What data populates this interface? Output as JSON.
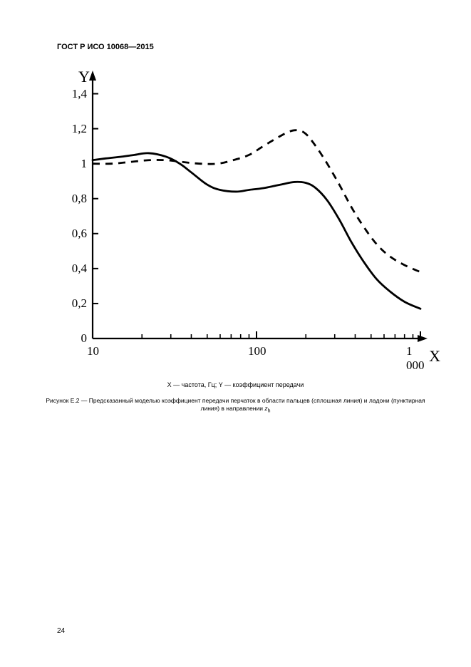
{
  "header": {
    "standard": "ГОСТ Р ИСО 10068—2015"
  },
  "page_number": "24",
  "axis_caption": {
    "line1_a": "X — частота, Гц; Y — коэффициент передачи",
    "fig_label": "Рисунок Е.2 — Предсказанный моделью коэффициент передачи перчаток в области пальцев (сплошная линия) и ладони (пунктирная линия) в направлении ",
    "z_sym": "z",
    "z_sub": "h"
  },
  "chart": {
    "type": "line-log-x",
    "colors": {
      "background": "#ffffff",
      "axis": "#000000",
      "series_solid": "#000000",
      "series_dashed": "#000000"
    },
    "stroke": {
      "axis_width": 2.2,
      "tick_width": 2.0,
      "series_width": 2.8,
      "dash_pattern": "10,8"
    },
    "x": {
      "label": "X",
      "min": 10,
      "max": 1000,
      "ticks_major": [
        10,
        100,
        1000
      ],
      "tick_labels": [
        "10",
        "100",
        "1 000"
      ]
    },
    "y": {
      "label": "Y",
      "min": 0,
      "max": 1.5,
      "ticks": [
        0,
        0.2,
        0.4,
        0.6,
        0.8,
        1.0,
        1.2,
        1.4
      ],
      "tick_labels": [
        "0",
        "0,2",
        "0,4",
        "0,6",
        "0,8",
        "1",
        "1,2",
        "1,4"
      ]
    },
    "series": {
      "solid": {
        "name": "fingers",
        "points": [
          [
            10,
            1.02
          ],
          [
            12,
            1.03
          ],
          [
            15,
            1.04
          ],
          [
            18,
            1.05
          ],
          [
            22,
            1.06
          ],
          [
            28,
            1.04
          ],
          [
            34,
            1.0
          ],
          [
            40,
            0.95
          ],
          [
            50,
            0.88
          ],
          [
            60,
            0.85
          ],
          [
            75,
            0.84
          ],
          [
            90,
            0.85
          ],
          [
            110,
            0.86
          ],
          [
            140,
            0.88
          ],
          [
            170,
            0.895
          ],
          [
            200,
            0.89
          ],
          [
            230,
            0.86
          ],
          [
            270,
            0.79
          ],
          [
            320,
            0.68
          ],
          [
            380,
            0.55
          ],
          [
            450,
            0.44
          ],
          [
            540,
            0.34
          ],
          [
            650,
            0.27
          ],
          [
            800,
            0.21
          ],
          [
            1000,
            0.17
          ]
        ]
      },
      "dashed": {
        "name": "palm",
        "points": [
          [
            10,
            1.0
          ],
          [
            13,
            1.0
          ],
          [
            17,
            1.01
          ],
          [
            22,
            1.02
          ],
          [
            28,
            1.02
          ],
          [
            35,
            1.01
          ],
          [
            45,
            1.0
          ],
          [
            58,
            1.0
          ],
          [
            72,
            1.02
          ],
          [
            90,
            1.05
          ],
          [
            110,
            1.1
          ],
          [
            135,
            1.15
          ],
          [
            160,
            1.185
          ],
          [
            180,
            1.19
          ],
          [
            200,
            1.17
          ],
          [
            230,
            1.1
          ],
          [
            270,
            1.0
          ],
          [
            320,
            0.88
          ],
          [
            380,
            0.75
          ],
          [
            450,
            0.64
          ],
          [
            540,
            0.54
          ],
          [
            650,
            0.47
          ],
          [
            800,
            0.42
          ],
          [
            1000,
            0.38
          ]
        ]
      }
    }
  }
}
